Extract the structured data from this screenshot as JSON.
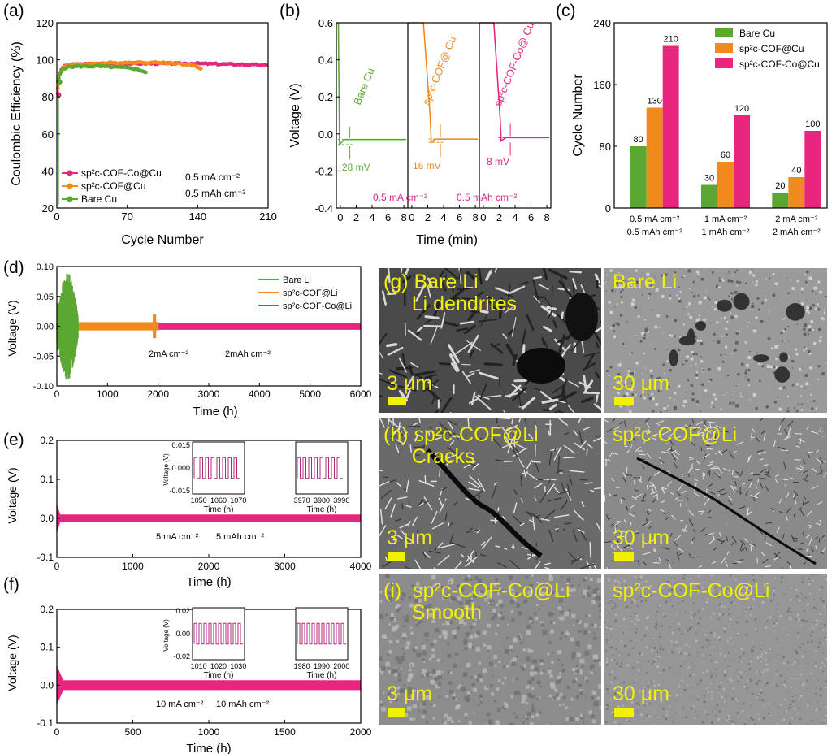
{
  "panel_labels": {
    "a": "(a)",
    "b": "(b)",
    "c": "(c)",
    "d": "(d)",
    "e": "(e)",
    "f": "(f)"
  },
  "colors": {
    "bare": "#5aa832",
    "cof": "#f08a1c",
    "coco": "#e8267e",
    "pink_text": "#d6248b",
    "sem_text": "#f2f200"
  },
  "chart_data": [
    {
      "id": "a",
      "type": "line",
      "xlabel": "Cycle Number",
      "ylabel": "Coulombic Efficiency (%)",
      "xlim": [
        0,
        210
      ],
      "ylim": [
        20,
        120
      ],
      "xticks": [
        0,
        70,
        140,
        210
      ],
      "yticks": [
        20,
        40,
        60,
        80,
        100,
        120
      ],
      "legend": [
        "sp²c-COF-Co@Cu",
        "sp²c-COF@Cu",
        "Bare Cu"
      ],
      "annotations": [
        "0.5 mA cm⁻²",
        "0.5 mAh cm⁻²"
      ],
      "series": [
        {
          "name": "sp²c-COF-Co@Cu",
          "color": "#e8267e",
          "x": [
            1,
            3,
            6,
            10,
            20,
            40,
            70,
            100,
            140,
            180,
            210
          ],
          "y": [
            82,
            93,
            96,
            97,
            97.5,
            97.8,
            98,
            98,
            98,
            97.5,
            97
          ]
        },
        {
          "name": "sp²c-COF@Cu",
          "color": "#f08a1c",
          "x": [
            1,
            3,
            6,
            10,
            20,
            40,
            70,
            100,
            120,
            135,
            145
          ],
          "y": [
            85,
            92,
            96,
            97,
            97.5,
            98,
            98.5,
            98.5,
            98,
            97,
            95
          ]
        },
        {
          "name": "Bare Cu",
          "color": "#5aa832",
          "x": [
            1,
            3,
            6,
            10,
            20,
            40,
            60,
            75,
            85,
            90
          ],
          "y": [
            88,
            92,
            95,
            96,
            96.5,
            96.5,
            96,
            95.5,
            94,
            93
          ]
        }
      ]
    },
    {
      "id": "b",
      "type": "line",
      "xlabel": "Time (min)",
      "ylabel": "Voltage (V)",
      "ylim": [
        -0.4,
        0.6
      ],
      "yticks": [
        -0.4,
        -0.2,
        0.0,
        0.2,
        0.4,
        0.6
      ],
      "xtick_labels": [
        "0",
        "2",
        "4",
        "6",
        "8",
        "0",
        "2",
        "4",
        "6",
        "8",
        "0",
        "2",
        "4",
        "6",
        "8"
      ],
      "segment_labels": [
        "Bare Cu",
        "sp²c-COF@ Cu",
        "sp²c-COF-Co@ Cu"
      ],
      "overpotentials": [
        "28 mV",
        "16 mV",
        "8 mV"
      ],
      "annotations": [
        "0.5 mA cm⁻²",
        "0.5 mAh cm⁻²"
      ]
    },
    {
      "id": "c",
      "type": "bar",
      "ylabel": "Cycle Number",
      "ylim": [
        0,
        240
      ],
      "yticks": [
        0,
        80,
        160,
        240
      ],
      "categories": [
        [
          "0.5 mA cm⁻²",
          "0.5 mAh cm⁻²"
        ],
        [
          "1 mA cm⁻²",
          "1 mAh cm⁻²"
        ],
        [
          "2 mA cm⁻²",
          "2 mAh cm⁻²"
        ]
      ],
      "series": [
        {
          "name": "Bare Cu",
          "color": "#5aa832",
          "values": [
            80,
            30,
            20
          ]
        },
        {
          "name": "sp²c-COF@Cu",
          "color": "#f08a1c",
          "values": [
            130,
            60,
            40
          ]
        },
        {
          "name": "sp²c-COF-Co@Cu",
          "color": "#e8267e",
          "values": [
            210,
            120,
            100
          ]
        }
      ]
    },
    {
      "id": "d",
      "type": "line",
      "xlabel": "Time (h)",
      "ylabel": "Voltage (V)",
      "xlim": [
        0,
        6000
      ],
      "ylim": [
        -0.1,
        0.1
      ],
      "xticks": [
        0,
        1000,
        2000,
        3000,
        4000,
        5000,
        6000
      ],
      "yticks": [
        -0.1,
        -0.05,
        0.0,
        0.05,
        0.1
      ],
      "ytick_labels": [
        "-0.10",
        "-0.05",
        "0.00",
        "0.05",
        "0.10"
      ],
      "legend": [
        "Bare Li",
        "sp²c-COF@Li",
        "sp²c-COF-Co@Li"
      ],
      "annotations": [
        "2mA cm⁻²",
        "2mAh cm⁻²"
      ]
    },
    {
      "id": "e",
      "type": "line",
      "xlabel": "Time (h)",
      "ylabel": "Voltage (V)",
      "xlim": [
        0,
        4000
      ],
      "ylim": [
        -0.1,
        0.2
      ],
      "xticks": [
        0,
        1000,
        2000,
        3000,
        4000
      ],
      "yticks": [
        -0.1,
        0.0,
        0.1,
        0.2
      ],
      "annotations": [
        "5 mA cm⁻²",
        "5 mAh cm⁻²"
      ],
      "insets": [
        {
          "xlabel": "Time (h)",
          "ylabel": "Voltage (V)",
          "xticks": [
            "1050",
            "1060",
            "1070"
          ],
          "yticks": [
            "0.015",
            "0.000",
            "-0.015"
          ]
        },
        {
          "xlabel": "Time (h)",
          "xticks": [
            "3970",
            "3980",
            "3990"
          ]
        }
      ]
    },
    {
      "id": "f",
      "type": "line",
      "xlabel": "Time (h)",
      "ylabel": "Voltage (V)",
      "xlim": [
        0,
        2000
      ],
      "ylim": [
        -0.1,
        0.2
      ],
      "xticks": [
        0,
        500,
        1000,
        1500,
        2000
      ],
      "yticks": [
        -0.1,
        0.0,
        0.1,
        0.2
      ],
      "annotations": [
        "10 mA cm⁻²",
        "10 mAh cm⁻²"
      ],
      "insets": [
        {
          "xlabel": "Time (h)",
          "ylabel": "Voltage (V)",
          "xticks": [
            "1010",
            "1020",
            "1030"
          ],
          "yticks": [
            "0.02",
            "0.00",
            "-0.02"
          ]
        },
        {
          "xlabel": "Time (h)",
          "xticks": [
            "1980",
            "1990",
            "2000"
          ]
        }
      ]
    }
  ],
  "sem": {
    "g_left": {
      "label": "(g) Bare Li\n     Li dendrites",
      "scale": "3 μm"
    },
    "g_right": {
      "label": "Bare Li",
      "scale": "30 μm"
    },
    "h_left": {
      "label": "(h) sp²c-COF@Li\n     Cracks",
      "scale": "3 μm"
    },
    "h_right": {
      "label": "sp²c-COF@Li",
      "scale": "30 μm"
    },
    "i_left": {
      "label": "(i)  sp²c-COF-Co@Li\n     Smooth",
      "scale": "3 μm"
    },
    "i_right": {
      "label": "sp²c-COF-Co@Li",
      "scale": "30 μm"
    }
  }
}
